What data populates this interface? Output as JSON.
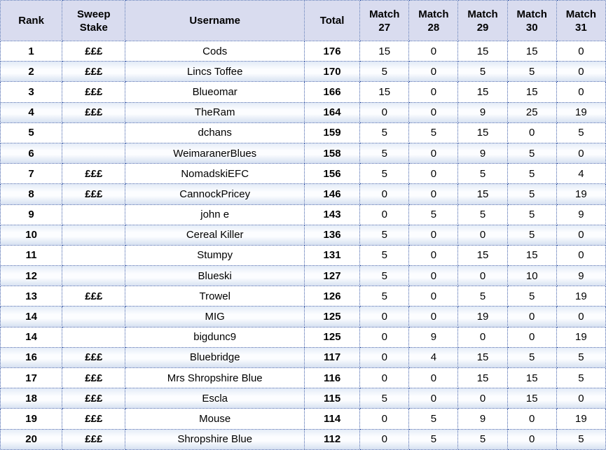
{
  "table": {
    "columns": [
      {
        "id": "rank",
        "line1": "Rank",
        "line2": ""
      },
      {
        "id": "stake",
        "line1": "Sweep",
        "line2": "Stake"
      },
      {
        "id": "user",
        "line1": "Username",
        "line2": ""
      },
      {
        "id": "total",
        "line1": "Total",
        "line2": ""
      },
      {
        "id": "m27",
        "line1": "Match",
        "line2": "27"
      },
      {
        "id": "m28",
        "line1": "Match",
        "line2": "28"
      },
      {
        "id": "m29",
        "line1": "Match",
        "line2": "29"
      },
      {
        "id": "m30",
        "line1": "Match",
        "line2": "30"
      },
      {
        "id": "m31",
        "line1": "Match",
        "line2": "31"
      }
    ],
    "rows": [
      {
        "rank": "1",
        "stake": "£££",
        "username": "Cods",
        "total": "176",
        "sweep": true,
        "scores": [
          15,
          0,
          15,
          15,
          0
        ],
        "highlights": [
          true,
          false,
          false,
          false,
          false
        ]
      },
      {
        "rank": "2",
        "stake": "£££",
        "username": "Lincs Toffee",
        "total": "170",
        "sweep": true,
        "scores": [
          5,
          0,
          5,
          5,
          0
        ],
        "highlights": [
          false,
          false,
          false,
          false,
          false
        ]
      },
      {
        "rank": "3",
        "stake": "£££",
        "username": "Blueomar",
        "total": "166",
        "sweep": true,
        "scores": [
          15,
          0,
          15,
          15,
          0
        ],
        "highlights": [
          true,
          false,
          false,
          false,
          false
        ]
      },
      {
        "rank": "4",
        "stake": "£££",
        "username": "TheRam",
        "total": "164",
        "sweep": true,
        "scores": [
          0,
          0,
          9,
          25,
          19
        ],
        "highlights": [
          false,
          false,
          false,
          true,
          true
        ]
      },
      {
        "rank": "5",
        "stake": "",
        "username": "dchans",
        "total": "159",
        "sweep": false,
        "scores": [
          5,
          5,
          15,
          0,
          5
        ],
        "highlights": [
          false,
          false,
          false,
          false,
          false
        ]
      },
      {
        "rank": "6",
        "stake": "",
        "username": "WeimaranerBlues",
        "total": "158",
        "sweep": false,
        "scores": [
          5,
          0,
          9,
          5,
          0
        ],
        "highlights": [
          false,
          false,
          false,
          false,
          false
        ]
      },
      {
        "rank": "7",
        "stake": "£££",
        "username": "NomadskiEFC",
        "total": "156",
        "sweep": true,
        "scores": [
          5,
          0,
          5,
          5,
          4
        ],
        "highlights": [
          false,
          false,
          false,
          false,
          false
        ]
      },
      {
        "rank": "8",
        "stake": "£££",
        "username": "CannockPricey",
        "total": "146",
        "sweep": true,
        "scores": [
          0,
          0,
          15,
          5,
          19
        ],
        "highlights": [
          false,
          false,
          false,
          false,
          true
        ]
      },
      {
        "rank": "9",
        "stake": "",
        "username": "john e",
        "total": "143",
        "sweep": false,
        "scores": [
          0,
          5,
          5,
          5,
          9
        ],
        "highlights": [
          false,
          false,
          false,
          false,
          false
        ]
      },
      {
        "rank": "10",
        "stake": "",
        "username": "Cereal Killer",
        "total": "136",
        "sweep": false,
        "scores": [
          5,
          0,
          0,
          5,
          0
        ],
        "highlights": [
          false,
          false,
          false,
          false,
          false
        ]
      },
      {
        "rank": "11",
        "stake": "",
        "username": "Stumpy",
        "total": "131",
        "sweep": false,
        "scores": [
          5,
          0,
          15,
          15,
          0
        ],
        "highlights": [
          false,
          false,
          false,
          false,
          false
        ]
      },
      {
        "rank": "12",
        "stake": "",
        "username": "Blueski",
        "total": "127",
        "sweep": false,
        "scores": [
          5,
          0,
          0,
          10,
          9
        ],
        "highlights": [
          false,
          false,
          false,
          false,
          false
        ]
      },
      {
        "rank": "13",
        "stake": "£££",
        "username": "Trowel",
        "total": "126",
        "sweep": true,
        "scores": [
          5,
          0,
          5,
          5,
          19
        ],
        "highlights": [
          false,
          false,
          false,
          false,
          true
        ]
      },
      {
        "rank": "14",
        "stake": "",
        "username": "MIG",
        "total": "125",
        "sweep": false,
        "scores": [
          0,
          0,
          19,
          0,
          0
        ],
        "highlights": [
          false,
          false,
          true,
          false,
          false
        ]
      },
      {
        "rank": "14",
        "stake": "",
        "username": "bigdunc9",
        "total": "125",
        "sweep": false,
        "scores": [
          0,
          9,
          0,
          0,
          19
        ],
        "highlights": [
          false,
          true,
          false,
          false,
          true
        ]
      },
      {
        "rank": "16",
        "stake": "£££",
        "username": "Bluebridge",
        "total": "117",
        "sweep": true,
        "scores": [
          0,
          4,
          15,
          5,
          5
        ],
        "highlights": [
          false,
          false,
          false,
          false,
          false
        ]
      },
      {
        "rank": "17",
        "stake": "£££",
        "username": "Mrs Shropshire Blue",
        "total": "116",
        "sweep": true,
        "scores": [
          0,
          0,
          15,
          15,
          5
        ],
        "highlights": [
          false,
          false,
          false,
          false,
          false
        ]
      },
      {
        "rank": "18",
        "stake": "£££",
        "username": "Escla",
        "total": "115",
        "sweep": true,
        "scores": [
          5,
          0,
          0,
          15,
          0
        ],
        "highlights": [
          false,
          false,
          false,
          false,
          false
        ]
      },
      {
        "rank": "19",
        "stake": "£££",
        "username": "Mouse",
        "total": "114",
        "sweep": true,
        "scores": [
          0,
          5,
          9,
          0,
          19
        ],
        "highlights": [
          false,
          false,
          false,
          false,
          true
        ]
      },
      {
        "rank": "20",
        "stake": "£££",
        "username": "Shropshire Blue",
        "total": "112",
        "sweep": true,
        "scores": [
          0,
          5,
          5,
          0,
          5
        ],
        "highlights": [
          false,
          false,
          false,
          false,
          false
        ]
      }
    ]
  },
  "colors": {
    "header_bg": "#d9dcef",
    "stripe_blue": "#d6e1f1",
    "highlight_green": "#92d050",
    "accent_orange": "#e36c0a",
    "border_blue": "#3f5ea9"
  }
}
